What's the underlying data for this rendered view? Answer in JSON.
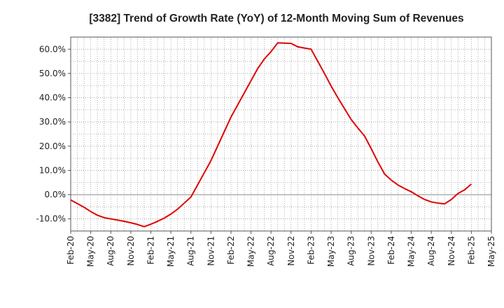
{
  "chart_data": {
    "type": "line",
    "title": "[3382]  Trend of Growth Rate (YoY) of 12-Month Moving Sum of Revenues",
    "xlabel": "",
    "ylabel": "",
    "x_tick_labels": [
      "Feb-20",
      "May-20",
      "Aug-20",
      "Nov-20",
      "Feb-21",
      "May-21",
      "Aug-21",
      "Nov-21",
      "Feb-22",
      "May-22",
      "Aug-22",
      "Nov-22",
      "Feb-23",
      "May-23",
      "Aug-23",
      "Nov-23",
      "Feb-24",
      "May-24",
      "Aug-24",
      "Nov-24",
      "Feb-25",
      "May-25"
    ],
    "y_tick_labels": [
      "-10.0%",
      "0.0%",
      "10.0%",
      "20.0%",
      "30.0%",
      "40.0%",
      "50.0%",
      "60.0%"
    ],
    "y_ticks": [
      -10,
      0,
      10,
      20,
      30,
      40,
      50,
      60
    ],
    "ylim": [
      -15,
      65
    ],
    "y_unit": "%",
    "grid": true,
    "zero_line": true,
    "line_color": "#e00000",
    "series": [
      {
        "x": [
          "Feb-20",
          "Mar-20",
          "Apr-20",
          "May-20",
          "Jun-20",
          "Jul-20",
          "Aug-20",
          "Sep-20",
          "Oct-20",
          "Nov-20",
          "Dec-20",
          "Jan-21",
          "Feb-21",
          "Mar-21",
          "Apr-21",
          "May-21",
          "Jun-21",
          "Jul-21",
          "Aug-21",
          "Sep-21",
          "Oct-21",
          "Nov-21",
          "Dec-21",
          "Jan-22",
          "Feb-22",
          "Mar-22",
          "Apr-22",
          "May-22",
          "Jun-22",
          "Jul-22",
          "Aug-22",
          "Sep-22",
          "Oct-22",
          "Nov-22",
          "Dec-22",
          "Jan-23",
          "Feb-23",
          "Mar-23",
          "Apr-23",
          "May-23",
          "Jun-23",
          "Jul-23",
          "Aug-23",
          "Sep-23",
          "Oct-23",
          "Nov-23",
          "Dec-23",
          "Jan-24",
          "Feb-24",
          "Mar-24",
          "Apr-24",
          "May-24",
          "Jun-24",
          "Jul-24",
          "Aug-24",
          "Sep-24",
          "Oct-24",
          "Nov-24",
          "Dec-24",
          "Jan-25",
          "Feb-25"
        ],
        "values": [
          -2.2,
          -3.7,
          -5.2,
          -7.0,
          -8.5,
          -9.5,
          -10.0,
          -10.5,
          -11.0,
          -11.6,
          -12.3,
          -13.2,
          -12.2,
          -11.0,
          -9.7,
          -8.0,
          -6.0,
          -3.5,
          -1.0,
          4.0,
          9.0,
          14.0,
          20.0,
          26.0,
          32.0,
          37.0,
          42.0,
          47.0,
          52.0,
          56.0,
          59.0,
          62.6,
          62.5,
          62.4,
          61.0,
          60.5,
          60.0,
          55.0,
          50.0,
          44.8,
          40.0,
          35.5,
          31.0,
          27.5,
          24.2,
          19.0,
          13.5,
          8.5,
          6.0,
          4.0,
          2.5,
          1.2,
          -0.5,
          -2.0,
          -3.0,
          -3.5,
          -3.8,
          -2.0,
          0.5,
          2.0,
          4.4
        ]
      }
    ]
  }
}
